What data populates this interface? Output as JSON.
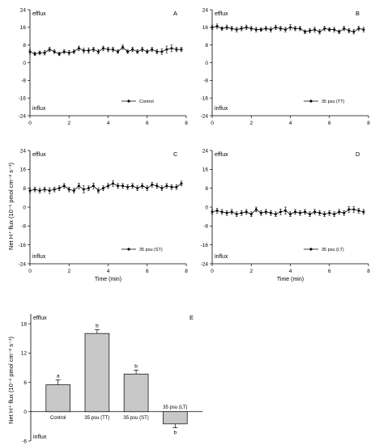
{
  "figure": {
    "shared_ylabel": "Net H⁺ flux (10⁻¹ pmol cm⁻² s⁻¹)",
    "efflux_label": "efflux",
    "influx_label": "influx"
  },
  "chart_data": [
    {
      "type": "line",
      "panel": "A",
      "xlabel": "",
      "xlim": [
        0,
        8
      ],
      "ylim": [
        -24,
        24
      ],
      "x_ticks": [
        "0",
        "2",
        "4",
        "6",
        "8"
      ],
      "y_ticks": [
        "24",
        "16",
        "8",
        "0",
        "-8",
        "-16",
        "-24"
      ],
      "legend": "Control",
      "series": [
        {
          "name": "Control",
          "x": [
            0,
            0.25,
            0.5,
            0.75,
            1,
            1.25,
            1.5,
            1.75,
            2,
            2.25,
            2.5,
            2.75,
            3,
            3.25,
            3.5,
            3.75,
            4,
            4.25,
            4.5,
            4.75,
            5,
            5.25,
            5.5,
            5.75,
            6,
            6.25,
            6.5,
            6.75,
            7,
            7.25,
            7.5,
            7.75
          ],
          "y": [
            5,
            4,
            4.5,
            4.5,
            6,
            5,
            4,
            5,
            4.5,
            5,
            6.5,
            5.5,
            5.5,
            6,
            5,
            6.5,
            6,
            6,
            5,
            7,
            5,
            6,
            5,
            6,
            5,
            6,
            5,
            5,
            6,
            6.5,
            6,
            6
          ],
          "err": [
            1,
            0.8,
            0.8,
            1,
            1,
            0.8,
            0.8,
            0.8,
            1,
            0.8,
            1,
            1,
            1.2,
            1,
            1,
            1,
            1,
            1,
            0.8,
            1,
            0.8,
            1,
            0.8,
            1,
            0.8,
            1,
            1,
            1.2,
            1.5,
            1.5,
            1,
            1
          ]
        }
      ]
    },
    {
      "type": "line",
      "panel": "B",
      "xlabel": "",
      "xlim": [
        0,
        8
      ],
      "ylim": [
        -24,
        24
      ],
      "x_ticks": [
        "0",
        "2",
        "4",
        "6",
        "8"
      ],
      "y_ticks": [
        "24",
        "16",
        "8",
        "0",
        "-8",
        "-16",
        "-24"
      ],
      "legend": "35 psu (TT)",
      "series": [
        {
          "name": "35 psu (TT)",
          "x": [
            0,
            0.25,
            0.5,
            0.75,
            1,
            1.25,
            1.5,
            1.75,
            2,
            2.25,
            2.5,
            2.75,
            3,
            3.25,
            3.5,
            3.75,
            4,
            4.25,
            4.5,
            4.75,
            5,
            5.25,
            5.5,
            5.75,
            6,
            6.25,
            6.5,
            6.75,
            7,
            7.25,
            7.5,
            7.75
          ],
          "y": [
            16,
            16.5,
            15.5,
            16,
            15.5,
            15,
            15.5,
            16,
            15.5,
            15,
            15,
            15.5,
            15,
            16,
            15.5,
            15,
            16,
            15.5,
            15.5,
            14,
            14.5,
            15,
            14,
            15.5,
            15,
            15,
            14,
            15.5,
            14.5,
            14,
            15.5,
            15
          ],
          "err": [
            1,
            1,
            0.8,
            1,
            1,
            1,
            1,
            1,
            1,
            1,
            0.8,
            1,
            1,
            1,
            1,
            1,
            1.2,
            1,
            1,
            0.8,
            1,
            1,
            1,
            1,
            0.8,
            1,
            0.8,
            1,
            1,
            1,
            1,
            1
          ]
        }
      ]
    },
    {
      "type": "line",
      "panel": "C",
      "xlabel": "Time (min)",
      "xlim": [
        0,
        8
      ],
      "ylim": [
        -24,
        24
      ],
      "x_ticks": [
        "0",
        "2",
        "4",
        "6",
        "8"
      ],
      "y_ticks": [
        "24",
        "16",
        "8",
        "0",
        "-8",
        "-16",
        "-24"
      ],
      "legend": "35 psu (ST)",
      "series": [
        {
          "name": "35 psu (ST)",
          "x": [
            0,
            0.25,
            0.5,
            0.75,
            1,
            1.25,
            1.5,
            1.75,
            2,
            2.25,
            2.5,
            2.75,
            3,
            3.25,
            3.5,
            3.75,
            4,
            4.25,
            4.5,
            4.75,
            5,
            5.25,
            5.5,
            5.75,
            6,
            6.25,
            6.5,
            6.75,
            7,
            7.25,
            7.5,
            7.75
          ],
          "y": [
            7,
            7.5,
            7,
            7.5,
            7,
            7.5,
            8,
            9,
            7.5,
            7,
            9,
            7.5,
            8,
            9,
            7,
            8,
            9,
            10,
            9,
            9,
            8.5,
            9,
            8,
            9,
            8,
            9.5,
            9,
            8,
            9,
            8.5,
            8.5,
            10
          ],
          "err": [
            1,
            1,
            1,
            1,
            1.2,
            1,
            1,
            1,
            1,
            1,
            1.2,
            1.5,
            1,
            1.2,
            1,
            1,
            1,
            1.2,
            1,
            1,
            1,
            1,
            1,
            1,
            1,
            1,
            1,
            1,
            1,
            1,
            1,
            1
          ]
        }
      ]
    },
    {
      "type": "line",
      "panel": "D",
      "xlabel": "Time (min)",
      "xlim": [
        0,
        8
      ],
      "ylim": [
        -24,
        24
      ],
      "x_ticks": [
        "0",
        "2",
        "4",
        "6",
        "8"
      ],
      "y_ticks": [
        "24",
        "16",
        "8",
        "0",
        "-8",
        "-16",
        "-24"
      ],
      "legend": "35 psu (LT)",
      "series": [
        {
          "name": "35 psu (LT)",
          "x": [
            0,
            0.25,
            0.5,
            0.75,
            1,
            1.25,
            1.5,
            1.75,
            2,
            2.25,
            2.5,
            2.75,
            3,
            3.25,
            3.5,
            3.75,
            4,
            4.25,
            4.5,
            4.75,
            5,
            5.25,
            5.5,
            5.75,
            6,
            6.25,
            6.5,
            6.75,
            7,
            7.25,
            7.5,
            7.75
          ],
          "y": [
            -2,
            -1.5,
            -2,
            -2.5,
            -2,
            -3,
            -2.5,
            -2,
            -3,
            -1,
            -2.5,
            -2,
            -2.5,
            -3,
            -2,
            -1.5,
            -3,
            -2,
            -2.5,
            -2,
            -3,
            -2,
            -2.5,
            -3,
            -2.5,
            -3,
            -2,
            -2.5,
            -1,
            -1,
            -1.5,
            -2
          ],
          "err": [
            1,
            1,
            1,
            1,
            1,
            1,
            1,
            1,
            1,
            1,
            1,
            1,
            1,
            1,
            1.2,
            1.5,
            1,
            1,
            1,
            1,
            1,
            1,
            1,
            1,
            1,
            1,
            1,
            1,
            1.2,
            1.2,
            1,
            1
          ]
        }
      ]
    },
    {
      "type": "bar",
      "panel": "E",
      "categories": [
        "Control",
        "35 psu (TT)",
        "35 psu (ST)",
        "35 psu (LT)"
      ],
      "values": [
        5.5,
        16,
        7.7,
        -2.5
      ],
      "errors": [
        1,
        0.8,
        0.8,
        0.8
      ],
      "significance": [
        "a",
        "b",
        "b",
        "b"
      ],
      "ylim": [
        -6,
        20
      ],
      "y_ticks": [
        "18",
        "12",
        "6",
        "0",
        "-6"
      ],
      "xlabel": "",
      "ylabel": ""
    }
  ]
}
